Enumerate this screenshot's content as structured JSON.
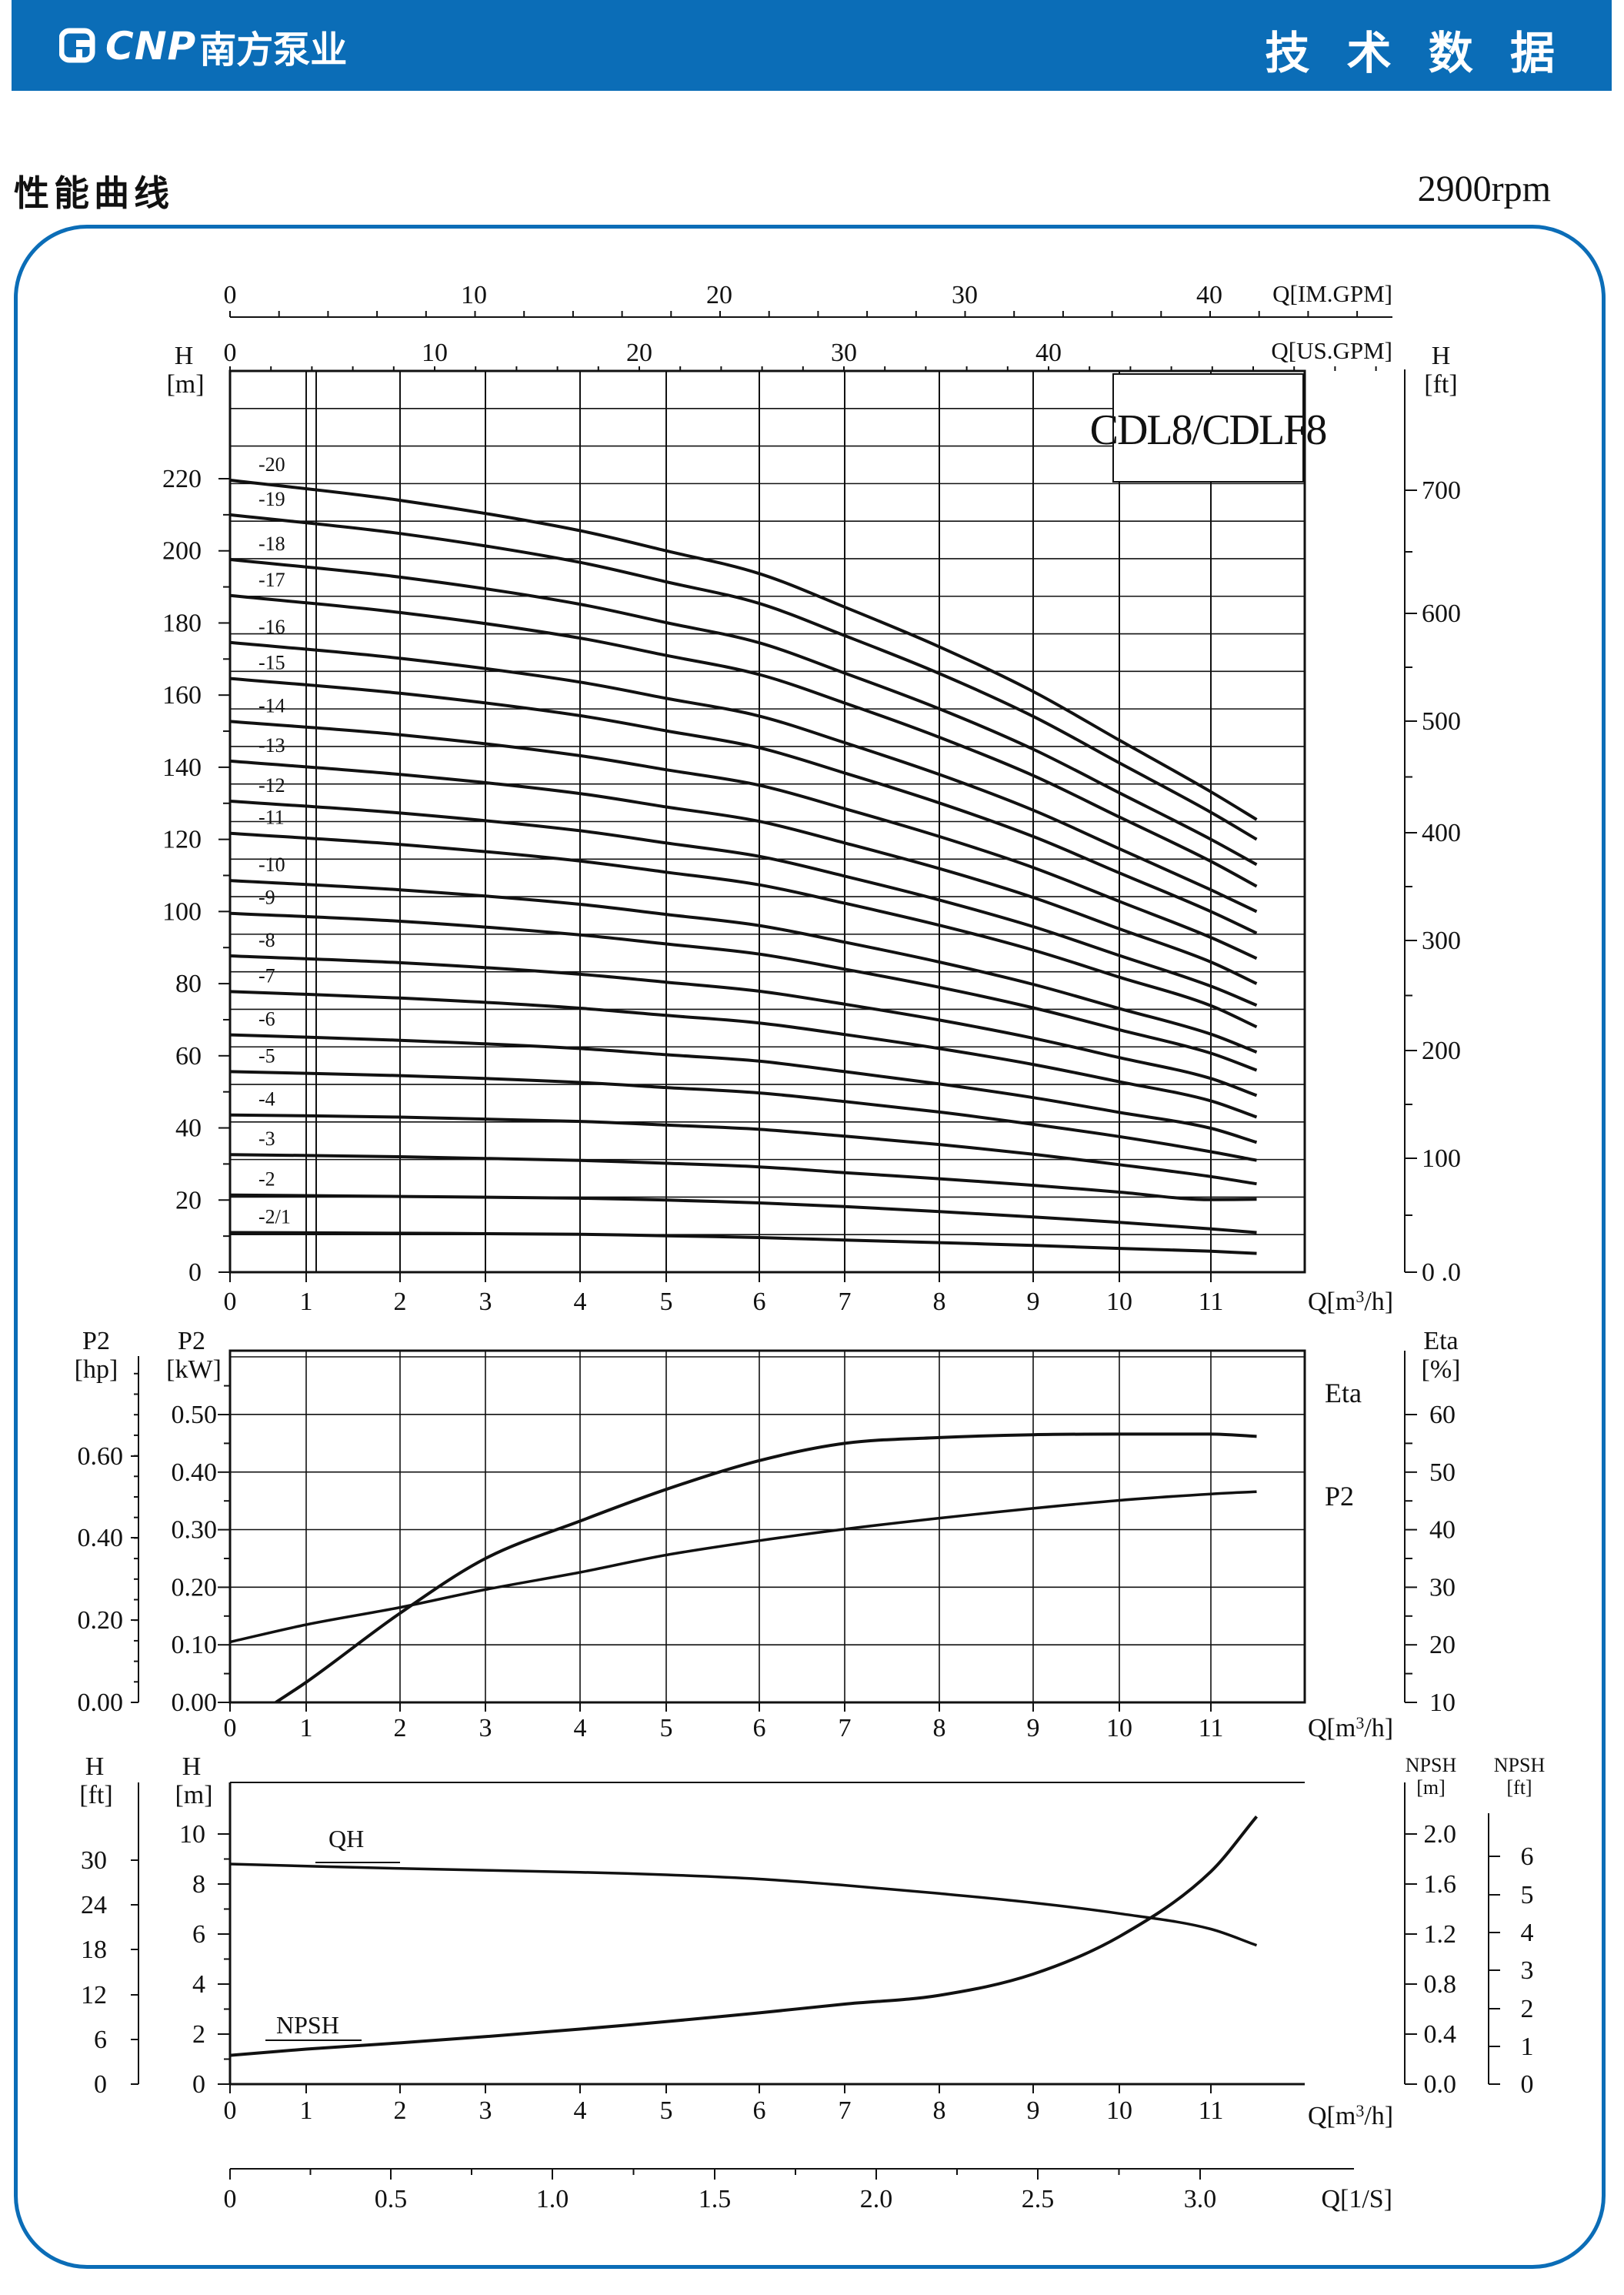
{
  "header": {
    "brand_latin": "CNP",
    "brand_chinese": "南方泵业",
    "section_right": "技 术 数 据",
    "logo_icon": "cnp-logo-icon",
    "brand_color": "#0b6db7"
  },
  "page": {
    "section_title": "性能曲线",
    "speed": "2900rpm"
  },
  "chart_data": [
    {
      "type": "line",
      "name_label": "CDL8/CDLF8",
      "xlabel": "Q[m³/h]",
      "xlabel_top_im": "Q[IM.GPM]",
      "xlabel_top_us": "Q[US.GPM]",
      "ylabel_left": "H",
      "ylabel_left_unit": "[m]",
      "ylabel_right": "H",
      "ylabel_right_unit": "[ft]",
      "xlim": [
        0,
        11.5
      ],
      "ylim": [
        0,
        240
      ],
      "x_ticks": [
        0,
        1,
        2,
        3,
        4,
        5,
        6,
        7,
        8,
        9,
        10,
        11
      ],
      "y_ticks_left": [
        0,
        20,
        40,
        60,
        80,
        100,
        120,
        140,
        160,
        180,
        200,
        220
      ],
      "y_ticks_right": [
        "0 .0",
        "100",
        "200",
        "300",
        "400",
        "500",
        "600",
        "700"
      ],
      "im_gpm_ticks": [
        0,
        10,
        20,
        30,
        40
      ],
      "us_gpm_ticks": [
        0,
        10,
        20,
        30,
        40
      ],
      "x": [
        0,
        2,
        4,
        5,
        6,
        7,
        8,
        9,
        10,
        11,
        11.5
      ],
      "series": [
        {
          "name": "-2/1",
          "values": [
            11,
            10.8,
            10.5,
            10.1,
            9.6,
            8.9,
            8.2,
            7.4,
            6.6,
            5.8,
            5.2
          ]
        },
        {
          "name": "-2",
          "values": [
            21.4,
            21,
            20.5,
            20,
            19.2,
            18.2,
            16.8,
            15.3,
            13.8,
            12,
            11
          ]
        },
        {
          "name": "-3",
          "values": [
            32.6,
            32,
            31,
            30.2,
            29.2,
            27.6,
            25.9,
            24.1,
            22.2,
            20.1,
            20.2
          ]
        },
        {
          "name": "-4",
          "values": [
            43.6,
            43,
            41.8,
            40.8,
            39.6,
            37.7,
            35.4,
            32.7,
            29.8,
            26.5,
            24.5
          ]
        },
        {
          "name": "-5",
          "values": [
            55.6,
            54.5,
            52.6,
            51.2,
            49.7,
            47.3,
            44.4,
            41,
            37.6,
            33.4,
            31
          ]
        },
        {
          "name": "-6",
          "values": [
            65.8,
            64.3,
            62,
            60.3,
            58.5,
            55.6,
            52.2,
            48.4,
            44.3,
            39.9,
            36
          ]
        },
        {
          "name": "-7",
          "values": [
            77.8,
            76,
            73.2,
            71.2,
            69.1,
            65.9,
            62,
            57.6,
            52.8,
            47.5,
            43
          ]
        },
        {
          "name": "-8",
          "values": [
            87.7,
            85.8,
            82.6,
            80.4,
            77.9,
            74.3,
            69.9,
            64.9,
            59.5,
            53.7,
            49
          ]
        },
        {
          "name": "-9",
          "values": [
            99.5,
            97.3,
            93.5,
            91,
            88.2,
            84,
            79,
            73.3,
            67.2,
            60.7,
            56
          ]
        },
        {
          "name": "-10",
          "values": [
            108.6,
            106,
            102,
            99.2,
            96.1,
            91.5,
            86,
            79.8,
            73.1,
            66,
            61
          ]
        },
        {
          "name": "-11",
          "values": [
            121.7,
            118.6,
            114,
            110.9,
            107.4,
            102.3,
            96.2,
            89.3,
            81.8,
            73.9,
            68
          ]
        },
        {
          "name": "-12",
          "values": [
            130.6,
            127.3,
            122.4,
            119,
            115.3,
            109.8,
            103.2,
            95.8,
            87.8,
            79.3,
            74
          ]
        },
        {
          "name": "-13",
          "values": [
            141.7,
            138,
            132.7,
            129,
            125,
            119,
            111.9,
            103.9,
            95.2,
            86,
            80
          ]
        },
        {
          "name": "-14",
          "values": [
            152.7,
            149,
            143.2,
            139.3,
            135,
            128.5,
            120.8,
            112.2,
            102.8,
            92.8,
            87
          ]
        },
        {
          "name": "-15",
          "values": [
            164.6,
            160.5,
            154.3,
            150.1,
            145.4,
            138.4,
            130.1,
            120.8,
            110.7,
            100,
            94
          ]
        },
        {
          "name": "-16",
          "values": [
            174.6,
            170.2,
            163.6,
            159.1,
            154.2,
            146.8,
            138,
            128.1,
            117.4,
            106,
            100
          ]
        },
        {
          "name": "-17",
          "values": [
            187.6,
            182.9,
            175.8,
            171,
            165.7,
            157.8,
            148.3,
            137.7,
            126.2,
            113.9,
            107
          ]
        },
        {
          "name": "-18",
          "values": [
            197.6,
            192.7,
            185.2,
            180.1,
            174.5,
            166.1,
            156.2,
            145,
            132.9,
            120,
            113
          ]
        },
        {
          "name": "-19",
          "values": [
            210,
            204.8,
            196.8,
            191.4,
            185.4,
            176.5,
            166,
            154.1,
            141.2,
            127.5,
            120
          ]
        },
        {
          "name": "-20",
          "values": [
            219.6,
            214,
            205.6,
            200,
            193.7,
            184.4,
            173.4,
            161,
            147.5,
            133.2,
            125.5
          ]
        }
      ]
    },
    {
      "type": "line",
      "xlabel": "Q[m³/h]",
      "ylabel_left_outer": "P2",
      "ylabel_left_outer_unit": "[hp]",
      "ylabel_left": "P2",
      "ylabel_left_unit": "[kW]",
      "ylabel_right": "Eta",
      "ylabel_right_unit": "[%]",
      "hp_ticks": [
        "0.00",
        "0.20",
        "0.40",
        "0.60"
      ],
      "kw_ticks": [
        "0.00",
        "0.10",
        "0.20",
        "0.30",
        "0.40",
        "0.50"
      ],
      "eta_ticks": [
        10,
        20,
        30,
        40,
        50,
        60
      ],
      "x_ticks": [
        0,
        1,
        2,
        3,
        4,
        5,
        6,
        7,
        8,
        9,
        10,
        11
      ],
      "xlim": [
        0,
        11.5
      ],
      "ylim_kw": [
        0,
        0.6
      ],
      "series": [
        {
          "name": "P2",
          "x": [
            0,
            1,
            2,
            3,
            4,
            5,
            6,
            7,
            8,
            9,
            10,
            11,
            11.5
          ],
          "values": [
            0.105,
            0.135,
            0.165,
            0.196,
            0.226,
            0.256,
            0.281,
            0.301,
            0.32,
            0.337,
            0.351,
            0.362,
            0.366
          ]
        },
        {
          "name": "Eta",
          "x": [
            0.6,
            1,
            2,
            3,
            4,
            5,
            6,
            7,
            8,
            9,
            10,
            11,
            11.5
          ],
          "values": [
            10,
            13.5,
            25.5,
            35,
            41.5,
            47,
            52,
            55,
            56,
            56.5,
            56.6,
            56.6,
            56.2
          ]
        }
      ]
    },
    {
      "type": "line",
      "xlabel": "Q[m³/h]",
      "xlabel_ls": "Q[1/S]",
      "ylabel_left_outer": "H",
      "ylabel_left_outer_unit": "[ft]",
      "ylabel_left": "H",
      "ylabel_left_unit": "[m]",
      "ylabel_right": "NPSH",
      "ylabel_right_unit": "[m]",
      "ylabel_right_outer": "NPSH",
      "ylabel_right_outer_unit": "[ft]",
      "ft_ticks": [
        0,
        6,
        12,
        18,
        24,
        30
      ],
      "m_ticks": [
        0,
        2,
        4,
        6,
        8,
        10
      ],
      "npsh_m_ticks": [
        "0.0",
        "0.4",
        "0.8",
        "1.2",
        "1.6",
        "2.0"
      ],
      "npsh_ft_ticks": [
        0,
        1,
        2,
        3,
        4,
        5,
        6
      ],
      "x_ticks": [
        0,
        1,
        2,
        3,
        4,
        5,
        6,
        7,
        8,
        9,
        10,
        11
      ],
      "ls_ticks": [
        "0",
        "0.5",
        "1.0",
        "1.5",
        "2.0",
        "2.5",
        "3.0"
      ],
      "xlim": [
        0,
        11.5
      ],
      "series": [
        {
          "name": "QH",
          "x": [
            0,
            2,
            4,
            5,
            6,
            7,
            8,
            9,
            10,
            11,
            11.5
          ],
          "values": [
            8.8,
            8.62,
            8.47,
            8.37,
            8.2,
            7.95,
            7.62,
            7.25,
            6.82,
            6.2,
            5.55
          ]
        },
        {
          "name": "NPSH",
          "x": [
            0,
            1,
            2,
            3,
            4,
            5,
            6,
            7,
            8,
            9,
            10,
            11,
            11.5
          ],
          "values": [
            0.23,
            0.28,
            0.33,
            0.38,
            0.44,
            0.5,
            0.57,
            0.64,
            0.71,
            0.88,
            1.18,
            1.7,
            2.14
          ]
        }
      ]
    }
  ]
}
